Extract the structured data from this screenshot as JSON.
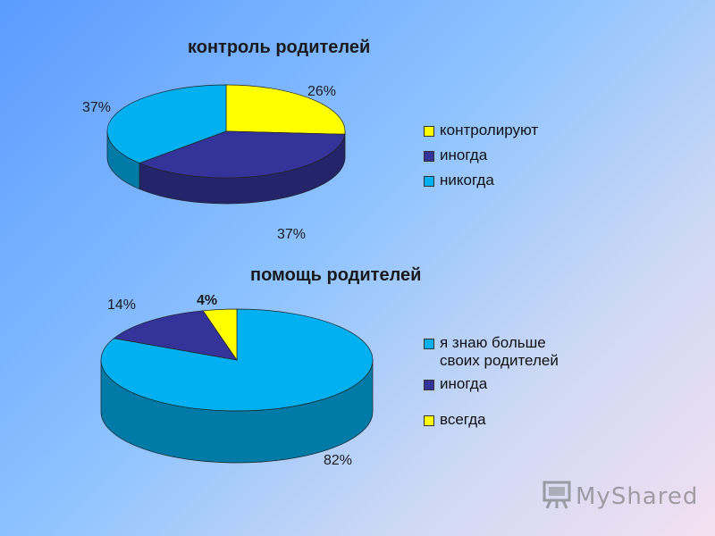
{
  "colors": {
    "yellow": "#ffff00",
    "navy": "#333399",
    "cyan": "#00b0f0"
  },
  "chart_data": [
    {
      "type": "pie",
      "title": "контроль родителей",
      "slices": [
        {
          "label": "контролируют",
          "value": 26,
          "display": "26%",
          "color": "#ffff00"
        },
        {
          "label": "иногда",
          "value": 37,
          "display": "37%",
          "color": "#333399"
        },
        {
          "label": "никогда",
          "value": 37,
          "display": "37%",
          "color": "#00b0f0"
        }
      ],
      "legend_position": "right",
      "style": "3d"
    },
    {
      "type": "pie",
      "title": "помощь родителей",
      "slices": [
        {
          "label": "я знаю больше своих родителей",
          "legend_text": "я знаю больше\nсвоих родителей",
          "value": 82,
          "display": "82%",
          "color": "#00b0f0"
        },
        {
          "label": "иногда",
          "legend_text": "иногда",
          "value": 14,
          "display": "14%",
          "color": "#333399"
        },
        {
          "label": "всегда",
          "legend_text": "всегда",
          "value": 4,
          "display": "4%",
          "color": "#ffff00"
        }
      ],
      "legend_position": "right",
      "style": "3d"
    }
  ],
  "watermark": {
    "text": "MyShared",
    "icon": "presentation-board-icon"
  }
}
